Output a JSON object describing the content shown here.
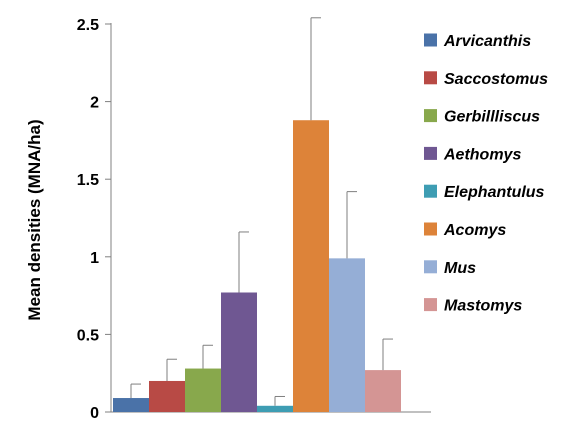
{
  "chart_data": {
    "type": "bar",
    "categories": [
      "Arvicanthis",
      "Saccostomus",
      "Gerbillliscus",
      "Aethomys",
      "Elephantulus",
      "Acomys",
      "Mus",
      "Mastomys"
    ],
    "series": [
      {
        "values": [
          0.09,
          0.2,
          0.28,
          0.77,
          0.04,
          1.88,
          0.99,
          0.27
        ],
        "error_upper": [
          0.18,
          0.34,
          0.43,
          1.16,
          0.1,
          2.54,
          1.42,
          0.47
        ]
      }
    ],
    "colors": [
      "#4a72a8",
      "#b84a45",
      "#88a84c",
      "#6f5792",
      "#3e9db3",
      "#dd8339",
      "#95aed6",
      "#d49594"
    ],
    "title": "",
    "xlabel": "",
    "ylabel": "Mean densities (MNA/ha)",
    "ylim": [
      0,
      2.5
    ],
    "yticks": [
      "0",
      "0.5",
      "1",
      "1.5",
      "2",
      "2.5"
    ],
    "ytick_values": [
      0,
      0.5,
      1,
      1.5,
      2,
      2.5
    ],
    "legend_position": "right",
    "grid": false
  }
}
